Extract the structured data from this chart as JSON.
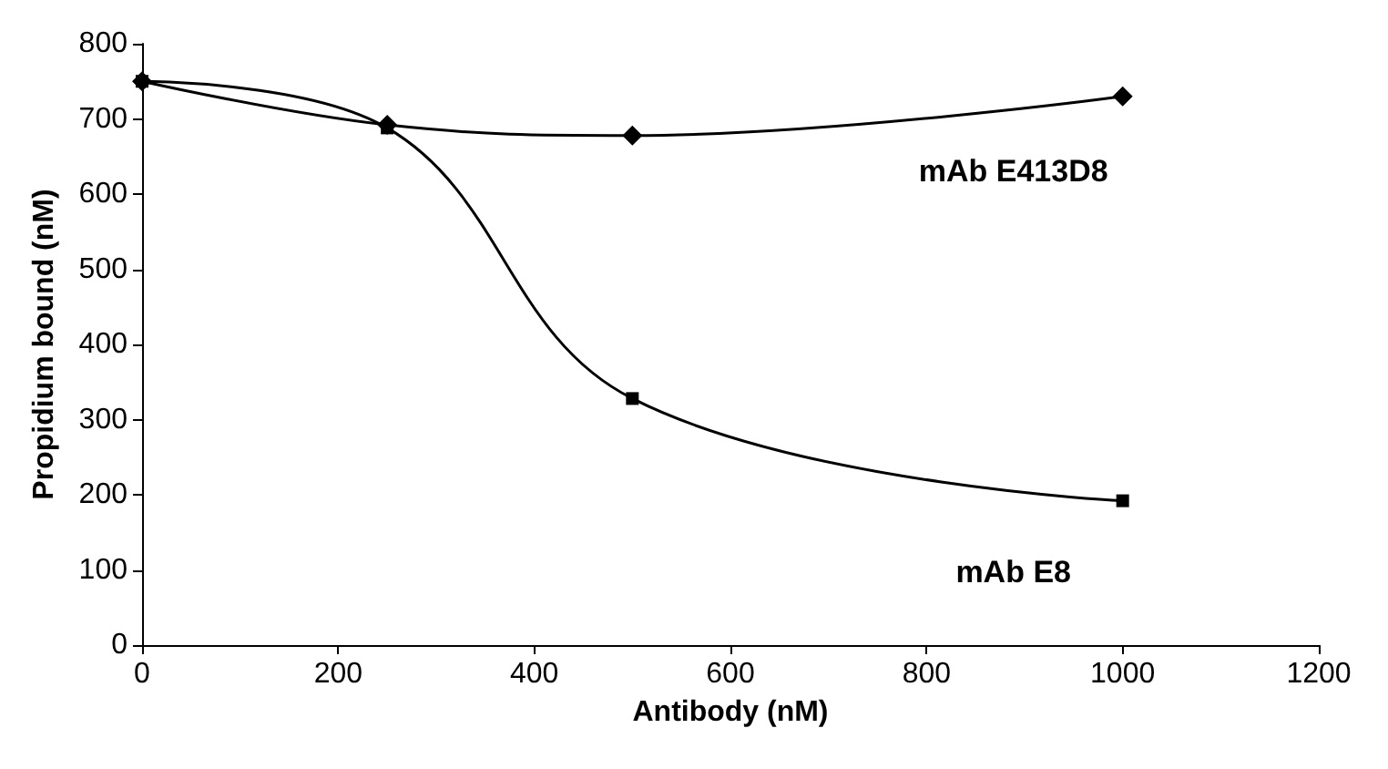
{
  "chart_data": {
    "type": "line",
    "xlabel": "Antibody (nM)",
    "ylabel": "Propidium bound (nM)",
    "xlim": [
      0,
      1200
    ],
    "xticks": [
      0,
      200,
      400,
      600,
      800,
      1000,
      1200
    ],
    "ylim": [
      0,
      800
    ],
    "yticks": [
      0,
      100,
      200,
      300,
      400,
      500,
      600,
      700,
      800
    ],
    "grid": false,
    "legend": false,
    "series": [
      {
        "name": "mAb E413D8",
        "color": "#000000",
        "marker": "diamond",
        "x": [
          0,
          250,
          500,
          1000
        ],
        "values": [
          750,
          692,
          678,
          730
        ]
      },
      {
        "name": "mAb E8",
        "color": "#000000",
        "marker": "square",
        "x": [
          0,
          250,
          500,
          1000
        ],
        "values": [
          750,
          688,
          328,
          192
        ]
      }
    ]
  }
}
